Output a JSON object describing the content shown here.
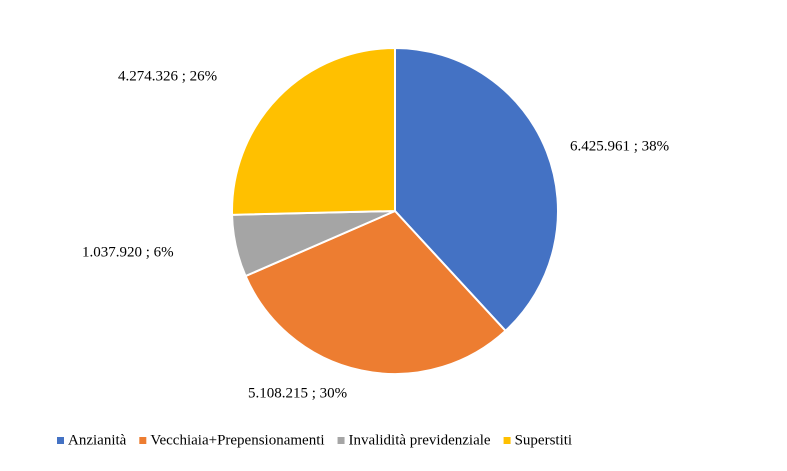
{
  "chart_data": {
    "type": "pie",
    "categories": [
      "Anzianità",
      "Vecchiaia+Prepensionamenti",
      "Invalidità previdenziale",
      "Superstiti"
    ],
    "values": [
      6425961,
      5108215,
      1037920,
      4274326
    ],
    "value_labels": [
      "6.425.961 ; 38%",
      "5.108.215 ; 30%",
      "1.037.920 ; 6%",
      "4.274.326 ; 26%"
    ],
    "colors": [
      "#4472c4",
      "#ed7d31",
      "#a5a5a5",
      "#ffc000"
    ],
    "legend": "bottom"
  }
}
